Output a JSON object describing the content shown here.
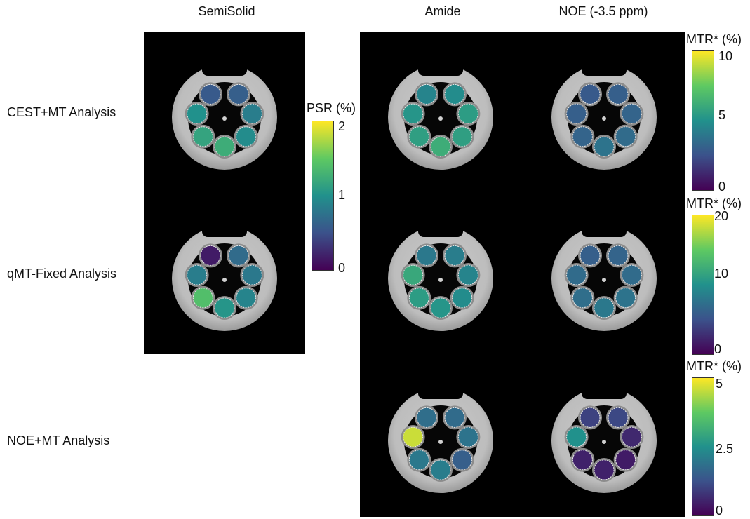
{
  "columns": {
    "semisolid": "SemiSolid",
    "amide": "Amide",
    "noe": "NOE (-3.5 ppm)"
  },
  "rows": {
    "cest_mt": "CEST+MT Analysis",
    "qmt_fixed": "qMT-Fixed Analysis",
    "noe_mt": "NOE+MT Analysis"
  },
  "colormap": {
    "name": "viridis",
    "stops": [
      "#440154",
      "#3b528b",
      "#21918c",
      "#5ec962",
      "#fde725"
    ]
  },
  "colorbars": {
    "psr": {
      "title": "PSR (%)",
      "ticks": [
        "2",
        "1",
        "0"
      ],
      "min": 0,
      "max": 2
    },
    "mtr_row1": {
      "title": "MTR* (%)",
      "ticks": [
        "10",
        "5",
        "0"
      ],
      "min": 0,
      "max": 10
    },
    "mtr_row2": {
      "title": "MTR* (%)",
      "ticks": [
        "20",
        "10",
        "0"
      ],
      "min": 0,
      "max": 20
    },
    "mtr_row3": {
      "title": "MTR* (%)",
      "ticks": [
        "5",
        "2.5",
        "0"
      ],
      "min": 0,
      "max": 5
    }
  },
  "tiles": [
    {
      "id": "cest-semisolid",
      "vials": [
        0.3,
        0.42,
        0.48,
        0.62,
        0.58,
        0.5,
        0.28
      ]
    },
    {
      "id": "cest-amide",
      "vials": [
        0.48,
        0.55,
        0.56,
        0.62,
        0.56,
        0.52,
        0.45
      ]
    },
    {
      "id": "cest-noe",
      "vials": [
        0.3,
        0.32,
        0.35,
        0.38,
        0.32,
        0.3,
        0.28
      ]
    },
    {
      "id": "qmt-semisolid",
      "vials": [
        0.35,
        0.4,
        0.45,
        0.52,
        0.7,
        0.42,
        0.08
      ]
    },
    {
      "id": "qmt-amide",
      "vials": [
        0.42,
        0.45,
        0.48,
        0.52,
        0.55,
        0.6,
        0.4
      ]
    },
    {
      "id": "qmt-noe",
      "vials": [
        0.32,
        0.35,
        0.38,
        0.4,
        0.36,
        0.35,
        0.3
      ]
    },
    {
      "id": "noe-amide",
      "vials": [
        0.35,
        0.38,
        0.3,
        0.42,
        0.4,
        0.92,
        0.36
      ]
    },
    {
      "id": "noe-noe",
      "vials": [
        0.22,
        0.12,
        0.08,
        0.1,
        0.1,
        0.5,
        0.2
      ]
    }
  ]
}
